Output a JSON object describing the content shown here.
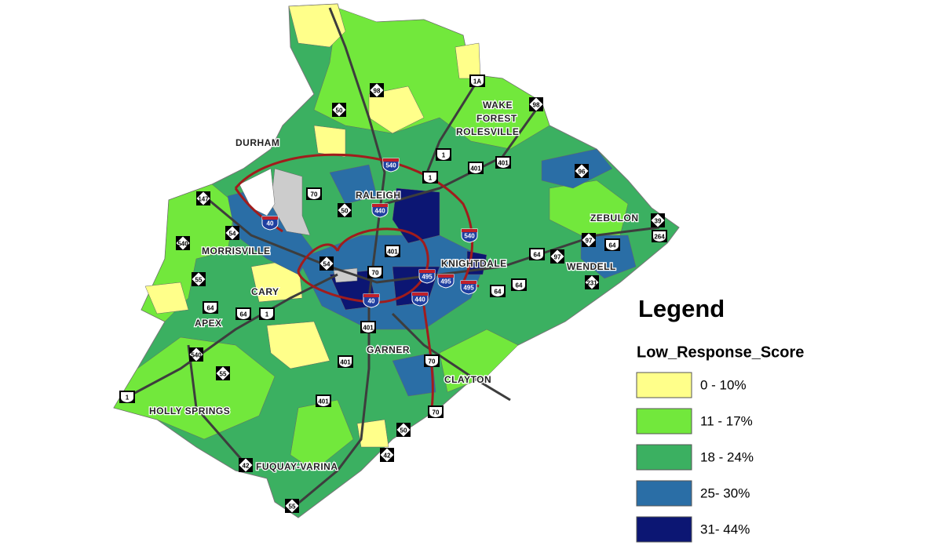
{
  "legend": {
    "title": "Legend",
    "field": "Low_Response_Score",
    "items": [
      {
        "label": "0 - 10%",
        "color": "#ffff8a"
      },
      {
        "label": "11 - 17%",
        "color": "#72e83c"
      },
      {
        "label": "18 - 24%",
        "color": "#3bb061"
      },
      {
        "label": "25- 30%",
        "color": "#2a6ea6"
      },
      {
        "label": "31- 44%",
        "color": "#0c1673"
      }
    ]
  },
  "places": [
    {
      "lines": [
        "DURHAM"
      ]
    },
    {
      "lines": [
        "RALEIGH"
      ]
    },
    {
      "lines": [
        "WAKE",
        "FOREST"
      ]
    },
    {
      "lines": [
        "ROLESVILLE"
      ]
    },
    {
      "lines": [
        "ZEBULON"
      ]
    },
    {
      "lines": [
        "KNIGHTDALE"
      ]
    },
    {
      "lines": [
        "WENDELL"
      ]
    },
    {
      "lines": [
        "MORRISVILLE"
      ]
    },
    {
      "lines": [
        "CARY"
      ]
    },
    {
      "lines": [
        "APEX"
      ]
    },
    {
      "lines": [
        "GARNER"
      ]
    },
    {
      "lines": [
        "CLAYTON"
      ]
    },
    {
      "lines": [
        "HOLLY SPRINGS"
      ]
    },
    {
      "lines": [
        "FUQUAY-VARINA"
      ]
    }
  ],
  "shields": [
    {
      "label": "98",
      "route": "nc"
    },
    {
      "label": "1A",
      "route": "us"
    },
    {
      "label": "50",
      "route": "nc"
    },
    {
      "label": "98",
      "route": "nc"
    },
    {
      "label": "1",
      "route": "us"
    },
    {
      "label": "401",
      "route": "us"
    },
    {
      "label": "401",
      "route": "us"
    },
    {
      "label": "540",
      "route": "interstate"
    },
    {
      "label": "1",
      "route": "us"
    },
    {
      "label": "96",
      "route": "nc"
    },
    {
      "label": "70",
      "route": "us"
    },
    {
      "label": "147",
      "route": "nc"
    },
    {
      "label": "50",
      "route": "nc"
    },
    {
      "label": "40",
      "route": "interstate"
    },
    {
      "label": "440",
      "route": "interstate"
    },
    {
      "label": "540",
      "route": "interstate"
    },
    {
      "label": "39",
      "route": "nc"
    },
    {
      "label": "264",
      "route": "us"
    },
    {
      "label": "54",
      "route": "nc"
    },
    {
      "label": "540",
      "route": "nc"
    },
    {
      "label": "401",
      "route": "us"
    },
    {
      "label": "97",
      "route": "nc"
    },
    {
      "label": "64",
      "route": "us"
    },
    {
      "label": "64",
      "route": "us"
    },
    {
      "label": "97",
      "route": "nc"
    },
    {
      "label": "54",
      "route": "nc"
    },
    {
      "label": "70",
      "route": "us"
    },
    {
      "label": "495",
      "route": "interstate"
    },
    {
      "label": "495",
      "route": "interstate"
    },
    {
      "label": "495",
      "route": "interstate"
    },
    {
      "label": "64",
      "route": "us"
    },
    {
      "label": "64",
      "route": "us"
    },
    {
      "label": "231",
      "route": "nc"
    },
    {
      "label": "55",
      "route": "nc"
    },
    {
      "label": "64",
      "route": "us"
    },
    {
      "label": "64",
      "route": "us"
    },
    {
      "label": "1",
      "route": "us"
    },
    {
      "label": "40",
      "route": "interstate"
    },
    {
      "label": "440",
      "route": "interstate"
    },
    {
      "label": "401",
      "route": "us"
    },
    {
      "label": "540",
      "route": "nc"
    },
    {
      "label": "401",
      "route": "us"
    },
    {
      "label": "70",
      "route": "us"
    },
    {
      "label": "55",
      "route": "nc"
    },
    {
      "label": "1",
      "route": "us"
    },
    {
      "label": "401",
      "route": "us"
    },
    {
      "label": "70",
      "route": "us"
    },
    {
      "label": "50",
      "route": "nc"
    },
    {
      "label": "42",
      "route": "nc"
    },
    {
      "label": "42",
      "route": "nc"
    },
    {
      "label": "55",
      "route": "nc"
    }
  ]
}
